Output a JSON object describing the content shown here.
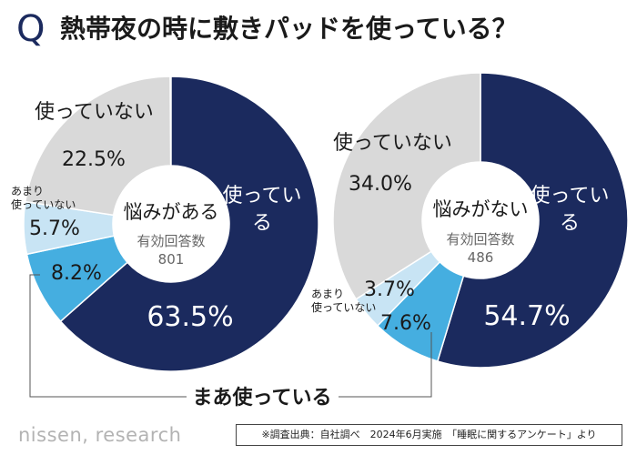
{
  "title": {
    "q_mark": "Q",
    "question": "熱帯夜の時に敷きパッドを使っている？"
  },
  "shared_label": "まあ使っている",
  "footer": {
    "logo": "nissen, research",
    "note": "※調査出典：自社調べ　2024年6月実施　「睡眠に関するアンケート」より"
  },
  "colors": {
    "use": "#1b2a5e",
    "somewhat_use": "#45aee0",
    "rarely_use": "#c8e4f4",
    "not_use": "#d9d9d9",
    "center": "#ffffff",
    "text_dark": "#1a1a1a",
    "text_white": "#ffffff"
  },
  "chart_data": [
    {
      "type": "pie",
      "center_title": "悩みがある",
      "n_label": "有効回答数",
      "n_value": "801",
      "slices": [
        {
          "label": "使っている",
          "value": 63.5,
          "value_label": "63.5%"
        },
        {
          "label": "まあ使っている",
          "value": 8.2,
          "value_label": "8.2%"
        },
        {
          "label": "あまり使っていない",
          "value": 5.7,
          "value_label": "5.7%"
        },
        {
          "label": "使っていない",
          "value": 22.5,
          "value_label": "22.5%"
        }
      ]
    },
    {
      "type": "pie",
      "center_title": "悩みがない",
      "n_label": "有効回答数",
      "n_value": "486",
      "slices": [
        {
          "label": "使っている",
          "value": 54.7,
          "value_label": "54.7%"
        },
        {
          "label": "まあ使っている",
          "value": 7.6,
          "value_label": "7.6%"
        },
        {
          "label": "あまり使っていない",
          "value": 3.7,
          "value_label": "3.7%"
        },
        {
          "label": "使っていない",
          "value": 34.0,
          "value_label": "34.0%"
        }
      ]
    }
  ]
}
